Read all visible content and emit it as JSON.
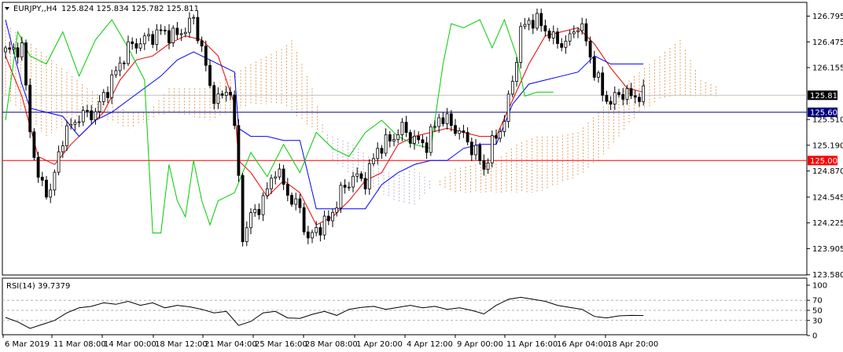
{
  "header": {
    "symbol": "EURJPY,,H4",
    "ohlc": "125.824 125.834 125.782 125.811"
  },
  "rsi_header": "RSI(14) 39.7379",
  "colors": {
    "background": "#ffffff",
    "candles": "#000000",
    "tenkan": "#e60000",
    "kijun": "#0000ff",
    "chikou": "#00cc00",
    "cloud_bull": "#e08a3c",
    "cloud_bear": "#b0a0d0",
    "level_red": "#ff0000",
    "level_dark": "#000080",
    "current_price_line": "#c0c0c0"
  },
  "price_axis": {
    "ticks": [
      "126.795",
      "126.475",
      "126.155",
      "125.811",
      "125.600",
      "125.510",
      "125.190",
      "125.000",
      "124.870",
      "124.545",
      "124.225",
      "123.905",
      "123.580"
    ]
  },
  "price_tags": {
    "current": "125.811",
    "level_600": "125.600",
    "level_000": "125.000"
  },
  "rsi_axis": {
    "ticks": [
      "100",
      "70",
      "50",
      "30",
      "0"
    ]
  },
  "time_axis": {
    "labels": [
      "6 Mar 2019",
      "11 Mar 08:00",
      "14 Mar 00:00",
      "18 Mar 12:00",
      "21 Mar 04:00",
      "25 Mar 16:00",
      "28 Mar 08:00",
      "1 Apr 20:00",
      "4 Apr 12:00",
      "9 Apr 00:00",
      "11 Apr 16:00",
      "16 Apr 04:00",
      "18 Apr 20:00"
    ]
  },
  "chart_data": [
    {
      "type": "candlestick",
      "title": "EURJPY,,H4",
      "ylim": [
        123.58,
        126.9
      ],
      "x_labels": [
        "6 Mar 2019",
        "11 Mar 08:00",
        "14 Mar 00:00",
        "18 Mar 12:00",
        "21 Mar 04:00",
        "25 Mar 16:00",
        "28 Mar 08:00",
        "1 Apr 20:00",
        "4 Apr 12:00",
        "9 Apr 00:00",
        "11 Apr 16:00",
        "16 Apr 04:00",
        "18 Apr 20:00"
      ],
      "close_anchors": [
        [
          0,
          126.35
        ],
        [
          4,
          126.4
        ],
        [
          6,
          125.4
        ],
        [
          8,
          124.75
        ],
        [
          11,
          124.6
        ],
        [
          14,
          125.3
        ],
        [
          18,
          125.55
        ],
        [
          22,
          125.6
        ],
        [
          26,
          126.0
        ],
        [
          30,
          126.4
        ],
        [
          34,
          126.5
        ],
        [
          38,
          126.6
        ],
        [
          42,
          126.55
        ],
        [
          46,
          126.75
        ],
        [
          48,
          126.4
        ],
        [
          50,
          125.9
        ],
        [
          52,
          125.75
        ],
        [
          55,
          125.9
        ],
        [
          57,
          124.8
        ],
        [
          58,
          124.05
        ],
        [
          60,
          124.3
        ],
        [
          63,
          124.5
        ],
        [
          66,
          124.9
        ],
        [
          68,
          124.7
        ],
        [
          70,
          124.5
        ],
        [
          72,
          124.4
        ],
        [
          74,
          124.0
        ],
        [
          76,
          124.15
        ],
        [
          79,
          124.25
        ],
        [
          82,
          124.6
        ],
        [
          85,
          124.8
        ],
        [
          88,
          124.75
        ],
        [
          91,
          125.15
        ],
        [
          94,
          125.25
        ],
        [
          97,
          125.4
        ],
        [
          100,
          125.25
        ],
        [
          103,
          125.2
        ],
        [
          106,
          125.55
        ],
        [
          109,
          125.45
        ],
        [
          112,
          125.3
        ],
        [
          115,
          125.1
        ],
        [
          117,
          124.9
        ],
        [
          119,
          125.2
        ],
        [
          122,
          125.5
        ],
        [
          124,
          126.0
        ],
        [
          126,
          126.6
        ],
        [
          128,
          126.75
        ],
        [
          131,
          126.7
        ],
        [
          134,
          126.5
        ],
        [
          137,
          126.45
        ],
        [
          140,
          126.7
        ],
        [
          142,
          126.5
        ],
        [
          144,
          126.1
        ],
        [
          146,
          125.85
        ],
        [
          148,
          125.7
        ],
        [
          150,
          125.85
        ],
        [
          153,
          125.8
        ],
        [
          156,
          125.811
        ]
      ],
      "series": [
        {
          "name": "Tenkan",
          "points": [
            [
              0,
              126.3
            ],
            [
              4,
              125.8
            ],
            [
              8,
              125.05
            ],
            [
              12,
              124.95
            ],
            [
              16,
              125.2
            ],
            [
              20,
              125.4
            ],
            [
              24,
              125.6
            ],
            [
              28,
              126.0
            ],
            [
              32,
              126.25
            ],
            [
              36,
              126.3
            ],
            [
              40,
              126.45
            ],
            [
              44,
              126.55
            ],
            [
              48,
              126.5
            ],
            [
              52,
              126.3
            ],
            [
              56,
              125.7
            ],
            [
              57,
              125.0
            ],
            [
              60,
              124.85
            ],
            [
              64,
              124.55
            ],
            [
              68,
              124.75
            ],
            [
              72,
              124.6
            ],
            [
              76,
              124.2
            ],
            [
              80,
              124.3
            ],
            [
              84,
              124.5
            ],
            [
              88,
              124.75
            ],
            [
              92,
              124.85
            ],
            [
              96,
              125.2
            ],
            [
              100,
              125.3
            ],
            [
              104,
              125.35
            ],
            [
              108,
              125.4
            ],
            [
              112,
              125.35
            ],
            [
              116,
              125.3
            ],
            [
              120,
              125.3
            ],
            [
              124,
              125.75
            ],
            [
              128,
              126.2
            ],
            [
              132,
              126.55
            ],
            [
              136,
              126.6
            ],
            [
              140,
              126.65
            ],
            [
              144,
              126.45
            ],
            [
              148,
              126.15
            ],
            [
              152,
              125.9
            ],
            [
              156,
              125.85
            ]
          ]
        },
        {
          "name": "Kijun",
          "points": [
            [
              0,
              126.75
            ],
            [
              4,
              125.95
            ],
            [
              6,
              125.65
            ],
            [
              10,
              125.6
            ],
            [
              14,
              125.55
            ],
            [
              18,
              125.3
            ],
            [
              22,
              125.5
            ],
            [
              26,
              125.6
            ],
            [
              30,
              125.75
            ],
            [
              34,
              125.9
            ],
            [
              38,
              126.05
            ],
            [
              42,
              126.25
            ],
            [
              46,
              126.35
            ],
            [
              50,
              126.25
            ],
            [
              56,
              126.1
            ],
            [
              57,
              125.4
            ],
            [
              60,
              125.3
            ],
            [
              64,
              125.3
            ],
            [
              68,
              125.25
            ],
            [
              72,
              125.25
            ],
            [
              76,
              124.4
            ],
            [
              80,
              124.4
            ],
            [
              84,
              124.4
            ],
            [
              88,
              124.4
            ],
            [
              92,
              124.7
            ],
            [
              96,
              124.85
            ],
            [
              100,
              124.95
            ],
            [
              104,
              125.0
            ],
            [
              108,
              125.0
            ],
            [
              112,
              125.15
            ],
            [
              116,
              125.2
            ],
            [
              120,
              125.2
            ],
            [
              124,
              125.7
            ],
            [
              128,
              125.95
            ],
            [
              132,
              126.0
            ],
            [
              136,
              126.05
            ],
            [
              140,
              126.1
            ],
            [
              144,
              126.3
            ],
            [
              148,
              126.2
            ],
            [
              152,
              126.2
            ],
            [
              156,
              126.2
            ]
          ]
        },
        {
          "name": "Chikou",
          "points": [
            [
              0,
              125.5
            ],
            [
              3,
              126.6
            ],
            [
              6,
              126.3
            ],
            [
              10,
              126.2
            ],
            [
              14,
              126.6
            ],
            [
              18,
              126.05
            ],
            [
              22,
              126.5
            ],
            [
              26,
              126.75
            ],
            [
              30,
              126.4
            ],
            [
              34,
              126.0
            ],
            [
              36,
              124.1
            ],
            [
              38,
              124.1
            ],
            [
              40,
              124.95
            ],
            [
              42,
              124.5
            ],
            [
              44,
              124.3
            ],
            [
              46,
              125.0
            ],
            [
              48,
              124.5
            ],
            [
              50,
              124.2
            ],
            [
              52,
              124.5
            ],
            [
              56,
              124.6
            ],
            [
              60,
              125.1
            ],
            [
              64,
              124.8
            ],
            [
              68,
              125.2
            ],
            [
              72,
              124.85
            ],
            [
              76,
              125.35
            ],
            [
              80,
              125.15
            ],
            [
              84,
              125.05
            ],
            [
              88,
              125.35
            ],
            [
              92,
              125.5
            ],
            [
              96,
              125.3
            ],
            [
              100,
              125.2
            ],
            [
              104,
              125.15
            ],
            [
              107,
              126.2
            ],
            [
              109,
              126.7
            ],
            [
              112,
              126.65
            ],
            [
              116,
              126.75
            ],
            [
              119,
              126.4
            ],
            [
              122,
              126.75
            ],
            [
              125,
              126.3
            ],
            [
              127,
              125.8
            ],
            [
              130,
              125.85
            ],
            [
              134,
              125.85
            ]
          ]
        }
      ],
      "horizontal_levels": [
        125.6,
        125.0
      ],
      "current_price": 125.811
    },
    {
      "type": "line",
      "title": "RSI(14) 39.7379",
      "ylim": [
        0,
        100
      ],
      "reference_levels": [
        70,
        50,
        30
      ],
      "points": [
        [
          0,
          36
        ],
        [
          3,
          27
        ],
        [
          6,
          14
        ],
        [
          9,
          22
        ],
        [
          12,
          30
        ],
        [
          15,
          45
        ],
        [
          18,
          55
        ],
        [
          21,
          58
        ],
        [
          24,
          65
        ],
        [
          27,
          62
        ],
        [
          30,
          68
        ],
        [
          33,
          60
        ],
        [
          36,
          65
        ],
        [
          39,
          55
        ],
        [
          42,
          60
        ],
        [
          45,
          57
        ],
        [
          48,
          52
        ],
        [
          51,
          45
        ],
        [
          54,
          48
        ],
        [
          57,
          20
        ],
        [
          60,
          28
        ],
        [
          63,
          45
        ],
        [
          66,
          48
        ],
        [
          69,
          35
        ],
        [
          72,
          34
        ],
        [
          75,
          42
        ],
        [
          78,
          48
        ],
        [
          81,
          40
        ],
        [
          84,
          52
        ],
        [
          87,
          56
        ],
        [
          90,
          58
        ],
        [
          93,
          52
        ],
        [
          96,
          56
        ],
        [
          99,
          60
        ],
        [
          102,
          55
        ],
        [
          105,
          58
        ],
        [
          108,
          52
        ],
        [
          111,
          55
        ],
        [
          114,
          50
        ],
        [
          117,
          43
        ],
        [
          120,
          60
        ],
        [
          123,
          72
        ],
        [
          126,
          76
        ],
        [
          129,
          72
        ],
        [
          132,
          68
        ],
        [
          135,
          60
        ],
        [
          138,
          56
        ],
        [
          141,
          52
        ],
        [
          144,
          38
        ],
        [
          147,
          35
        ],
        [
          150,
          39
        ],
        [
          153,
          40
        ],
        [
          156,
          39.7
        ]
      ]
    }
  ]
}
